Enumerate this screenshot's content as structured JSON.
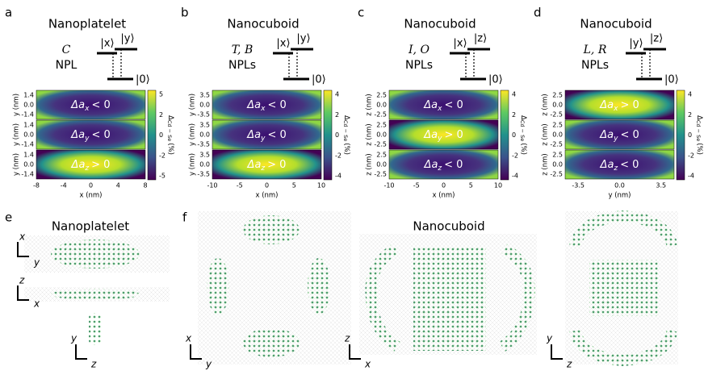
{
  "panels_top": [
    {
      "letter": "a",
      "title": "Nanoplatelet",
      "level": [
        "C",
        "NPL"
      ],
      "states": [
        "|x⟩",
        "|y⟩",
        "|0⟩"
      ],
      "maps": [
        {
          "sym": "Δa",
          "sub": "x",
          "rel": "< 0",
          "axis": "y (nm)",
          "ticks": [
            "1.4",
            "0.0",
            "-1.4"
          ]
        },
        {
          "sym": "Δa",
          "sub": "y",
          "rel": "< 0",
          "axis": "y (nm)",
          "ticks": [
            "1.4",
            "0.0",
            "-1.4"
          ]
        },
        {
          "sym": "Δa",
          "sub": "z",
          "rel": "> 0",
          "axis": "y (nm)",
          "ticks": [
            "1.4",
            "0.0",
            "-1.4"
          ]
        }
      ],
      "xticks": [
        "-8",
        "-4",
        "0",
        "4",
        "8"
      ],
      "xlabel": "x (nm)",
      "cbar_label": [
        "Δ",
        "Cd − Se",
        "(%)"
      ],
      "cbar_ticks": [
        "5",
        "2",
        "0",
        "-2",
        "-5"
      ]
    },
    {
      "letter": "b",
      "title": "Nanocuboid",
      "level": [
        "T, B",
        "NPLs"
      ],
      "states": [
        "|x⟩",
        "|y⟩",
        "|0⟩"
      ],
      "maps": [
        {
          "sym": "Δa",
          "sub": "x",
          "rel": "< 0",
          "axis": "y (nm)",
          "ticks": [
            "3.5",
            "0.0",
            "-3.5"
          ]
        },
        {
          "sym": "Δa",
          "sub": "y",
          "rel": "< 0",
          "axis": "y (nm)",
          "ticks": [
            "3.5",
            "0.0",
            "-3.5"
          ]
        },
        {
          "sym": "Δa",
          "sub": "z",
          "rel": "> 0",
          "axis": "y (nm)",
          "ticks": [
            "3.5",
            "0.0",
            "-3.5"
          ]
        }
      ],
      "xticks": [
        "-10",
        "-5",
        "0",
        "5",
        "10"
      ],
      "xlabel": "x (nm)",
      "cbar_label": [
        "Δ",
        "Cd − Se",
        "(%)"
      ],
      "cbar_ticks": [
        "4",
        "2",
        "0",
        "-2",
        "-4"
      ]
    },
    {
      "letter": "c",
      "title": "Nanocuboid",
      "level": [
        "I, O",
        "NPLs"
      ],
      "states": [
        "|x⟩",
        "|z⟩",
        "|0⟩"
      ],
      "maps": [
        {
          "sym": "Δa",
          "sub": "x",
          "rel": "< 0",
          "axis": "z (nm)",
          "ticks": [
            "2.5",
            "0.0",
            "-2.5"
          ]
        },
        {
          "sym": "Δa",
          "sub": "y",
          "rel": "> 0",
          "axis": "z (nm)",
          "ticks": [
            "2.5",
            "0.0",
            "-2.5"
          ]
        },
        {
          "sym": "Δa",
          "sub": "z",
          "rel": "< 0",
          "axis": "z (nm)",
          "ticks": [
            "2.5",
            "0.0",
            "-2.5"
          ]
        }
      ],
      "xticks": [
        "-10",
        "-5",
        "0",
        "5",
        "10"
      ],
      "xlabel": "x (nm)",
      "cbar_label": [
        "Δ",
        "Cd − Se",
        "(%)"
      ],
      "cbar_ticks": [
        "4",
        "2",
        "0",
        "-2",
        "-4"
      ]
    },
    {
      "letter": "d",
      "title": "Nanocuboid",
      "level": [
        "L, R",
        "NPLs"
      ],
      "states": [
        "|y⟩",
        "|z⟩",
        "|0⟩"
      ],
      "maps": [
        {
          "sym": "Δa",
          "sub": "x",
          "rel": "> 0",
          "axis": "z (nm)",
          "ticks": [
            "2.5",
            "0.0",
            "-2.5"
          ]
        },
        {
          "sym": "Δa",
          "sub": "y",
          "rel": "< 0",
          "axis": "z (nm)",
          "ticks": [
            "2.5",
            "0.0",
            "-2.5"
          ]
        },
        {
          "sym": "Δa",
          "sub": "z",
          "rel": "< 0",
          "axis": "z (nm)",
          "ticks": [
            "2.5",
            "0.0",
            "-2.5"
          ]
        }
      ],
      "xticks": [
        "-3.5",
        "0.0",
        "3.5"
      ],
      "xlabel": "y (nm)",
      "cbar_label": [
        "Δ",
        "Cd − Se",
        "(%)"
      ],
      "cbar_ticks": [
        "4",
        "2",
        "0",
        "-2",
        "-4"
      ]
    }
  ],
  "panel_e": {
    "letter": "e",
    "title": "Nanoplatelet",
    "axes": [
      [
        "x",
        "y"
      ],
      [
        "z",
        "x"
      ],
      [
        "y",
        "z"
      ]
    ]
  },
  "panel_f": {
    "letter": "f",
    "title": "Nanocuboid",
    "axes": [
      [
        "x",
        "y"
      ],
      [
        "z",
        "x"
      ],
      [
        "y",
        "z"
      ]
    ]
  }
}
